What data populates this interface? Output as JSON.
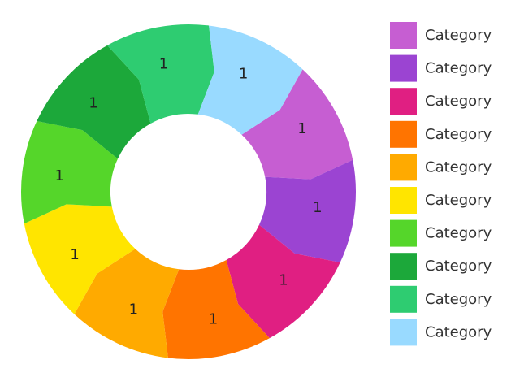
{
  "chart_data": {
    "type": "pie",
    "variant": "donut-arrows",
    "legend_position": "right",
    "slices": [
      {
        "label": "Category",
        "value": 1,
        "value_label": "1",
        "color": "#C65ED2"
      },
      {
        "label": "Category",
        "value": 1,
        "value_label": "1",
        "color": "#9B44D2"
      },
      {
        "label": "Category",
        "value": 1,
        "value_label": "1",
        "color": "#E01F82"
      },
      {
        "label": "Category",
        "value": 1,
        "value_label": "1",
        "color": "#FF7400"
      },
      {
        "label": "Category",
        "value": 1,
        "value_label": "1",
        "color": "#FFAA00"
      },
      {
        "label": "Category",
        "value": 1,
        "value_label": "1",
        "color": "#FFE500"
      },
      {
        "label": "Category",
        "value": 1,
        "value_label": "1",
        "color": "#55D62A"
      },
      {
        "label": "Category",
        "value": 1,
        "value_label": "1",
        "color": "#1CA83A"
      },
      {
        "label": "Category",
        "value": 1,
        "value_label": "1",
        "color": "#2ECC71"
      },
      {
        "label": "Category",
        "value": 1,
        "value_label": "1",
        "color": "#99DAFF"
      }
    ]
  }
}
